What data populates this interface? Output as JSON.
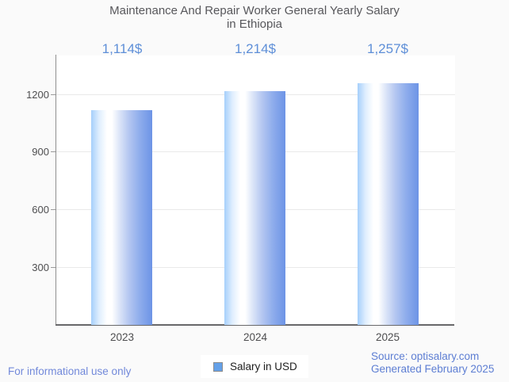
{
  "header": {
    "title_lines": [
      "Maintenance And Repair Worker General Yearly Salary",
      "in Ethiopia"
    ]
  },
  "chart_data": {
    "type": "bar",
    "title": "Maintenance And Repair Worker General Yearly Salary in Ethiopia",
    "categories": [
      "2023",
      "2024",
      "2025"
    ],
    "series": [
      {
        "name": "Salary in USD",
        "values": [
          1114,
          1214,
          1257
        ]
      }
    ],
    "annotations": [
      "1,114$",
      "1,214$",
      "1,257$"
    ],
    "xlabel": "",
    "ylabel": "",
    "ylim": [
      0,
      1400
    ],
    "yticks": [
      300,
      600,
      900,
      1200
    ],
    "grid": true,
    "legend_position": "bottom",
    "colors": {
      "bar_gradient": [
        "#a5cffb",
        "#ffffff",
        "#6d94e6"
      ],
      "annotation_text": "#5e8fd8",
      "axis_text": "#4e4e50",
      "gridline": "#e9e9e9",
      "title_text": "#57575b",
      "background": "#fafafa",
      "plot_background": "#ffffff"
    }
  },
  "legend": {
    "label": "Salary in USD",
    "swatch_color": "#63a0e8"
  },
  "footer": {
    "disclaimer": "For informational use only",
    "source": "Source: optisalary.com",
    "generated": "Generated February 2025",
    "link_color": "#5d7ed3"
  }
}
